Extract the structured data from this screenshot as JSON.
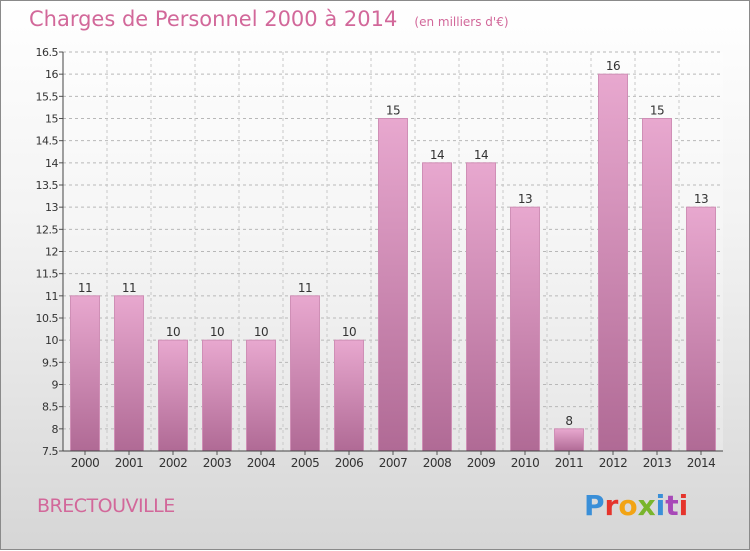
{
  "title": "Charges de Personnel 2000 à 2014",
  "subtitle": "(en milliers d'€)",
  "commune": "BRECTOUVILLE",
  "logo": "Proxiti",
  "colors": {
    "bar_top": "#e8a8cf",
    "bar_bottom": "#b06a95",
    "title": "#d2689a"
  },
  "chart_data": {
    "type": "bar",
    "categories": [
      "2000",
      "2001",
      "2002",
      "2003",
      "2004",
      "2005",
      "2006",
      "2007",
      "2008",
      "2009",
      "2010",
      "2011",
      "2012",
      "2013",
      "2014"
    ],
    "values": [
      11,
      11,
      10,
      10,
      10,
      11,
      10,
      15,
      14,
      14,
      13,
      8,
      16,
      15,
      13
    ],
    "ylim": [
      7.5,
      16.5
    ],
    "yticks": [
      "7.5",
      "8",
      "8.5",
      "9",
      "9.5",
      "10",
      "10.5",
      "11",
      "11.5",
      "12",
      "12.5",
      "13",
      "13.5",
      "14",
      "14.5",
      "15",
      "15.5",
      "16",
      "16.5"
    ],
    "grid": true
  }
}
